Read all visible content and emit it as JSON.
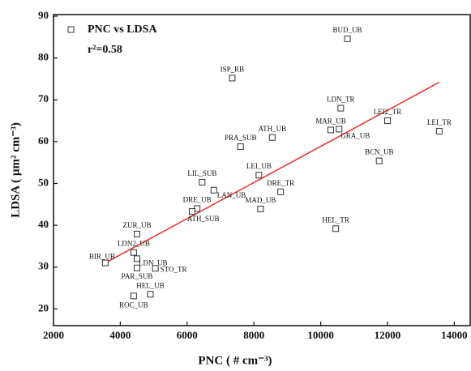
{
  "chart_data": {
    "type": "scatter",
    "xlabel": "PNC ( # cm⁻³)",
    "ylabel": "LDSA ( µm² cm⁻³)",
    "annotation": "r²=0.58",
    "xlim": [
      2000,
      14500
    ],
    "ylim": [
      16,
      90
    ],
    "xticks": [
      2000,
      4000,
      6000,
      8000,
      10000,
      12000,
      14000
    ],
    "yticks": [
      20,
      30,
      40,
      50,
      60,
      70,
      80,
      90
    ],
    "legend": "upper left",
    "series": [
      {
        "name": "PNC vs LDSA",
        "color": "#333333",
        "labels": [
          "BUD_UB",
          "ISP_RB",
          "LDN_TR",
          "LEI2_TR",
          "LEI_TR",
          "MAR_UB",
          "GRA_UB",
          "ATH_UB",
          "PRA_SUB",
          "BCN_UB",
          "LEI_UB",
          "LIL_SUB",
          "LAN_UB",
          "DRE_TR",
          "DRE_UB",
          "ATH_SUB",
          "MAD_UB",
          "HEL_TR",
          "ZUR_UB",
          "LDN2_UB",
          "LDN_UB",
          "BIR_UB",
          "PAR_SUB",
          "STO_TR",
          "HEL_UB",
          "ROC_UB"
        ],
        "x": [
          10800,
          7350,
          10600,
          12000,
          13550,
          10300,
          10550,
          8550,
          7600,
          11750,
          8150,
          6450,
          6800,
          8800,
          6300,
          6150,
          8200,
          10450,
          4500,
          4400,
          4500,
          3550,
          4500,
          5050,
          4900,
          4400
        ],
        "values": [
          84.6,
          75.2,
          68,
          65,
          62.5,
          62.8,
          63,
          61,
          58.8,
          55.4,
          52,
          50.3,
          48.4,
          48,
          44,
          43.3,
          43.9,
          39.2,
          37.9,
          33.5,
          32,
          31,
          29.8,
          29.7,
          23.5,
          23.1
        ]
      }
    ],
    "fit": {
      "color": "#e8302a",
      "x": [
        3550,
        13550
      ],
      "values": [
        31,
        74.2
      ]
    }
  }
}
